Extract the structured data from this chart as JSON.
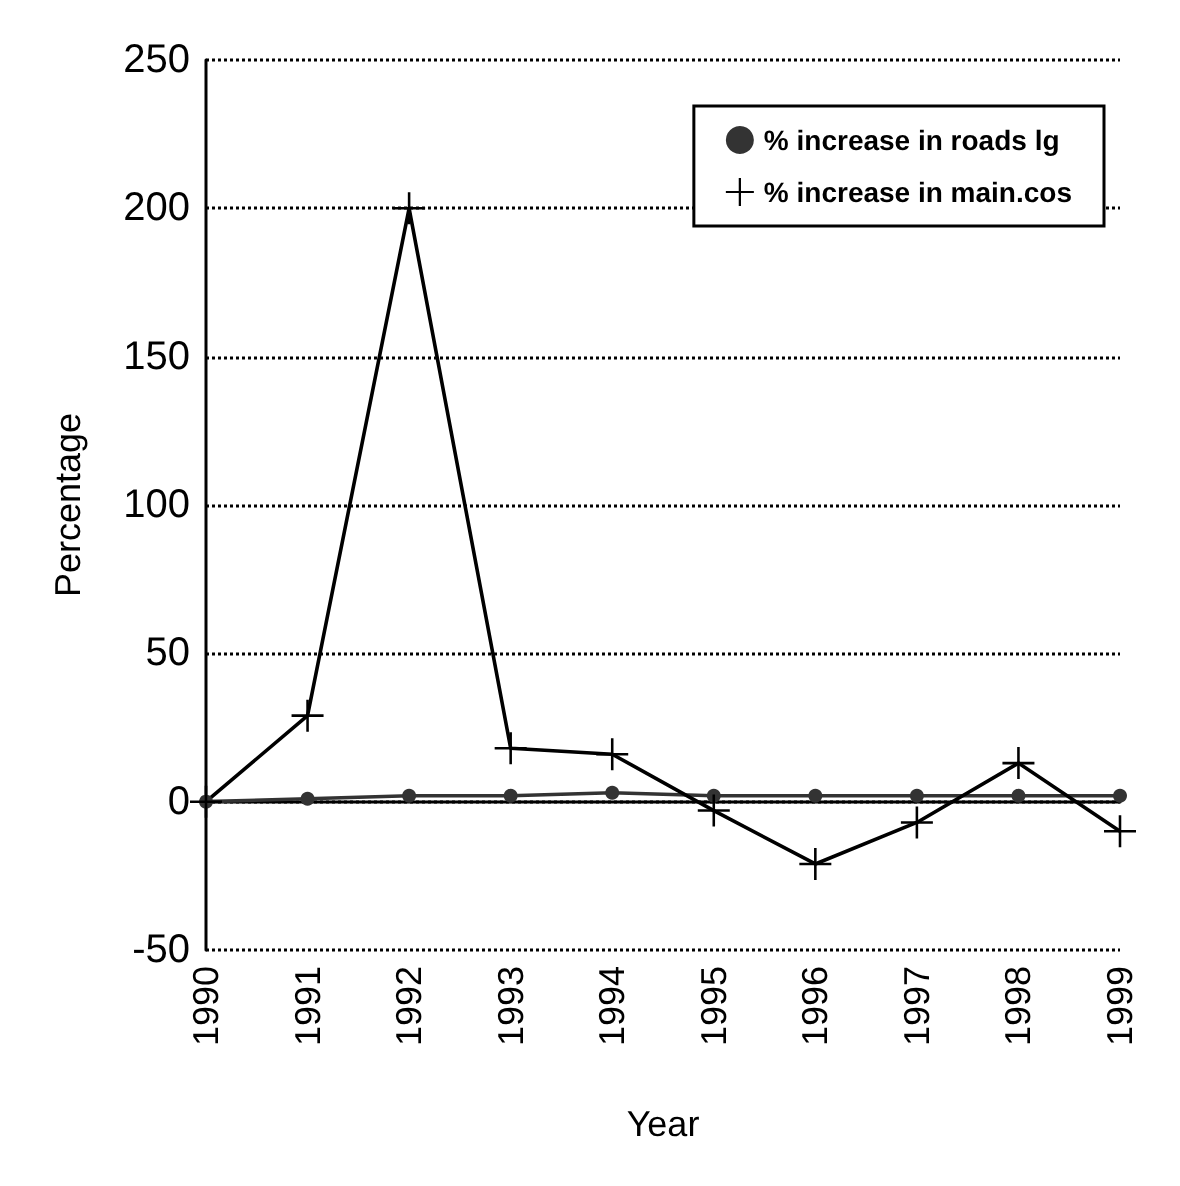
{
  "chart_data": {
    "type": "line",
    "xlabel": "Year",
    "ylabel": "Percentage",
    "categories": [
      "1990",
      "1991",
      "1992",
      "1993",
      "1994",
      "1995",
      "1996",
      "1997",
      "1998",
      "1999"
    ],
    "series": [
      {
        "name": "% increase in roads lg",
        "color": "#333333",
        "marker": "circle",
        "values": [
          0,
          1,
          2,
          2,
          3,
          2,
          2,
          2,
          2,
          2
        ]
      },
      {
        "name": "% increase in main.cos",
        "color": "#000000",
        "marker": "cross",
        "values": [
          0,
          29,
          200,
          18,
          16,
          -3,
          -21,
          -7,
          13,
          -10
        ]
      }
    ],
    "ylim": [
      -50,
      250
    ],
    "yticks": [
      -50,
      0,
      50,
      100,
      150,
      200,
      250
    ],
    "grid": "y",
    "legend": "top right"
  }
}
